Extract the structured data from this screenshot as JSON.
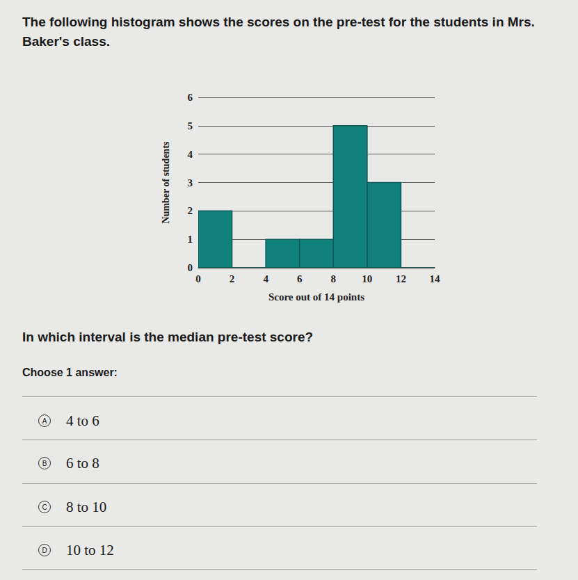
{
  "intro": "The following histogram shows the scores on the pre-test for the students in Mrs. Baker's class.",
  "chart_data": {
    "type": "histogram",
    "bins": [
      0,
      2,
      4,
      6,
      8,
      10,
      12,
      14
    ],
    "counts": [
      2,
      0,
      1,
      1,
      5,
      3,
      0
    ],
    "color": "#12817b",
    "xlabel": "Score out of 14 points",
    "ylabel": "Number of students",
    "xlim": [
      0,
      14
    ],
    "xticks": [
      0,
      2,
      4,
      6,
      8,
      10,
      12,
      14
    ],
    "ylim": [
      0,
      6
    ],
    "yticks": [
      0,
      1,
      2,
      3,
      4,
      5,
      6
    ],
    "grid": true
  },
  "question": "In which interval is the median pre-test score?",
  "instruction": "Choose 1 answer:",
  "choices": [
    {
      "letter": "A",
      "text": "4 to 6"
    },
    {
      "letter": "B",
      "text": "6 to 8"
    },
    {
      "letter": "C",
      "text": "8 to 10"
    },
    {
      "letter": "D",
      "text": "10 to 12"
    }
  ]
}
